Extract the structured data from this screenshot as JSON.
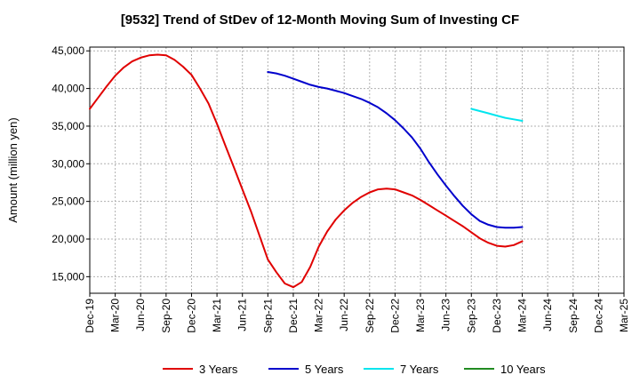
{
  "chart_data": {
    "type": "line",
    "title": "[9532]  Trend of StDev of 12-Month Moving Sum of Investing CF",
    "ylabel": "Amount (million yen)",
    "xlabel": "",
    "ylim": [
      12800,
      45500
    ],
    "yticks": [
      15000,
      20000,
      25000,
      30000,
      35000,
      40000,
      45000
    ],
    "ytick_labels": [
      "15,000",
      "20,000",
      "25,000",
      "30,000",
      "35,000",
      "40,000",
      "45,000"
    ],
    "x_range": [
      "Dec-19",
      "Mar-25"
    ],
    "xtick_labels": [
      "Dec-19",
      "Mar-20",
      "Jun-20",
      "Sep-20",
      "Dec-20",
      "Mar-21",
      "Jun-21",
      "Sep-21",
      "Dec-21",
      "Mar-22",
      "Jun-22",
      "Sep-22",
      "Dec-22",
      "Mar-23",
      "Jun-23",
      "Sep-23",
      "Dec-23",
      "Mar-24",
      "Jun-24",
      "Sep-24",
      "Dec-24",
      "Mar-25"
    ],
    "grid": true,
    "legend_position": "bottom",
    "series": [
      {
        "name": "3 Years",
        "color": "#e00000",
        "x": [
          "Dec-19",
          "Jan-20",
          "Feb-20",
          "Mar-20",
          "Apr-20",
          "May-20",
          "Jun-20",
          "Jul-20",
          "Aug-20",
          "Sep-20",
          "Oct-20",
          "Nov-20",
          "Dec-20",
          "Jan-21",
          "Feb-21",
          "Mar-21",
          "Apr-21",
          "May-21",
          "Jun-21",
          "Jul-21",
          "Aug-21",
          "Sep-21",
          "Oct-21",
          "Nov-21",
          "Dec-21",
          "Jan-22",
          "Feb-22",
          "Mar-22",
          "Apr-22",
          "May-22",
          "Jun-22",
          "Jul-22",
          "Aug-22",
          "Sep-22",
          "Oct-22",
          "Nov-22",
          "Dec-22",
          "Jan-23",
          "Feb-23",
          "Mar-23",
          "Apr-23",
          "May-23",
          "Jun-23",
          "Jul-23",
          "Aug-23",
          "Sep-23",
          "Oct-23",
          "Nov-23",
          "Dec-23",
          "Jan-24",
          "Feb-24",
          "Mar-24"
        ],
        "values": [
          37300,
          38800,
          40300,
          41700,
          42800,
          43600,
          44100,
          44400,
          44500,
          44400,
          43800,
          42900,
          41800,
          40000,
          38000,
          35300,
          32400,
          29500,
          26600,
          23700,
          20500,
          17300,
          15600,
          14100,
          13600,
          14300,
          16300,
          19000,
          21000,
          22600,
          23800,
          24800,
          25600,
          26200,
          26600,
          26700,
          26600,
          26200,
          25800,
          25200,
          24500,
          23800,
          23100,
          22400,
          21700,
          20900,
          20100,
          19500,
          19100,
          19000,
          19200,
          19700
        ]
      },
      {
        "name": "5 Years",
        "color": "#0000cc",
        "x": [
          "Dec-20",
          "Jan-21",
          "Feb-21",
          "Mar-21",
          "Apr-21",
          "May-21",
          "Jun-21",
          "Jul-21",
          "Aug-21",
          "Sep-21",
          "Oct-21",
          "Nov-21",
          "Dec-21",
          "Jan-22",
          "Feb-22",
          "Mar-22",
          "Apr-22",
          "May-22",
          "Jun-22",
          "Jul-22",
          "Aug-22",
          "Sep-22",
          "Oct-22",
          "Nov-22",
          "Dec-22",
          "Jan-23",
          "Feb-23",
          "Mar-23",
          "Apr-23",
          "May-23",
          "Jun-23",
          "Jul-23",
          "Aug-23",
          "Sep-23",
          "Oct-23",
          "Nov-23",
          "Dec-23",
          "Jan-24",
          "Feb-24",
          "Mar-24"
        ],
        "values": [
          null,
          null,
          null,
          null,
          null,
          null,
          null,
          null,
          null,
          42200,
          42000,
          41700,
          41300,
          40900,
          40500,
          40200,
          40000,
          39700,
          39400,
          39000,
          38600,
          38100,
          37500,
          36700,
          35800,
          34700,
          33500,
          32000,
          30200,
          28600,
          27100,
          25700,
          24400,
          23300,
          22400,
          21900,
          21600,
          21500,
          21500,
          21600
        ]
      },
      {
        "name": "7 Years",
        "color": "#00e5ee",
        "x": [
          "Sep-23",
          "Oct-23",
          "Nov-23",
          "Dec-23",
          "Jan-24",
          "Feb-24",
          "Mar-24"
        ],
        "values": [
          37300,
          37000,
          36700,
          36400,
          36100,
          35900,
          35700
        ]
      },
      {
        "name": "10 Years",
        "color": "#228b22",
        "x": [],
        "values": []
      }
    ]
  }
}
